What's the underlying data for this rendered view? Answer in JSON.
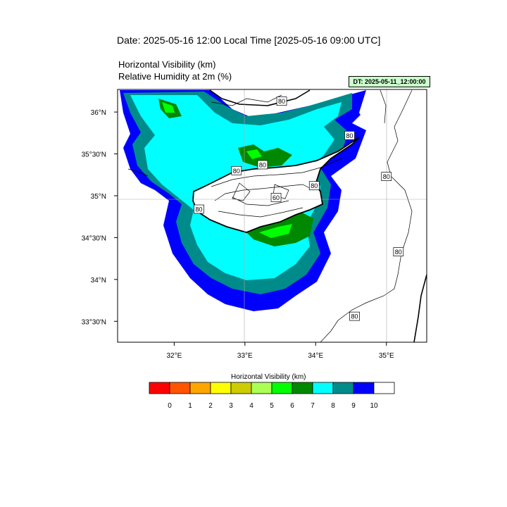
{
  "titles": {
    "date": "Date: 2025-05-16  12:00 Local Time [2025-05-16  09:00 UTC]",
    "var1": "Horizontal Visibility   (km)",
    "var2": "Relative Humidity at 2m   (%)",
    "dt_badge": "DT: 2025-05-11_12:00:00"
  },
  "map": {
    "lon_ticks": [
      {
        "value": 32,
        "label": "32°E"
      },
      {
        "value": 33,
        "label": "33°E"
      },
      {
        "value": 34,
        "label": "34°E"
      },
      {
        "value": 35,
        "label": "35°E"
      }
    ],
    "lat_ticks": [
      {
        "value": 36,
        "label": "36°N"
      },
      {
        "value": 35.5,
        "label": "35°30'N"
      },
      {
        "value": 35,
        "label": "35°N"
      },
      {
        "value": 34.5,
        "label": "34°30'N"
      },
      {
        "value": 34,
        "label": "34°N"
      },
      {
        "value": 33.5,
        "label": "33°30'N"
      }
    ],
    "contour_labels": [
      {
        "lon": 33.52,
        "lat": 36.13,
        "text": "80"
      },
      {
        "lon": 34.48,
        "lat": 35.72,
        "text": "80"
      },
      {
        "lon": 33.25,
        "lat": 35.37,
        "text": "80"
      },
      {
        "lon": 32.88,
        "lat": 35.3,
        "text": "80"
      },
      {
        "lon": 33.98,
        "lat": 35.12,
        "text": "80"
      },
      {
        "lon": 35.0,
        "lat": 35.23,
        "text": "80"
      },
      {
        "lon": 33.44,
        "lat": 34.98,
        "text": "60"
      },
      {
        "lon": 32.35,
        "lat": 34.84,
        "text": "80"
      },
      {
        "lon": 35.17,
        "lat": 34.33,
        "text": "80"
      },
      {
        "lon": 34.55,
        "lat": 33.56,
        "text": "80"
      }
    ]
  },
  "colorbar": {
    "title": "Horizontal Visibility  (km)",
    "colors": [
      "#ff0000",
      "#ff5500",
      "#ffa500",
      "#ffff00",
      "#cccc00",
      "#aaff55",
      "#00ff00",
      "#008800",
      "#00ffff",
      "#008b8b",
      "#0000ff",
      "#ffffff"
    ],
    "labels": [
      "0",
      "1",
      "2",
      "3",
      "4",
      "5",
      "6",
      "7",
      "8",
      "9",
      "10"
    ]
  }
}
